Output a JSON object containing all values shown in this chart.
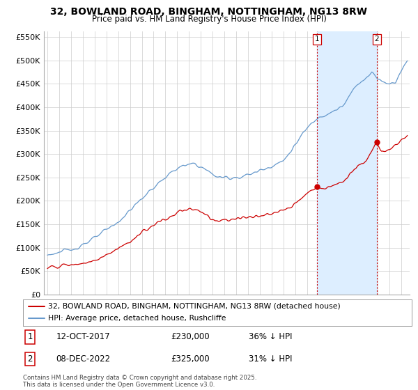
{
  "title": "32, BOWLAND ROAD, BINGHAM, NOTTINGHAM, NG13 8RW",
  "subtitle": "Price paid vs. HM Land Registry's House Price Index (HPI)",
  "legend_entry1": "32, BOWLAND ROAD, BINGHAM, NOTTINGHAM, NG13 8RW (detached house)",
  "legend_entry2": "HPI: Average price, detached house, Rushcliffe",
  "transaction1_label": "1",
  "transaction1_date": "12-OCT-2017",
  "transaction1_price": "£230,000",
  "transaction1_hpi": "36% ↓ HPI",
  "transaction2_label": "2",
  "transaction2_date": "08-DEC-2022",
  "transaction2_price": "£325,000",
  "transaction2_hpi": "31% ↓ HPI",
  "copyright": "Contains HM Land Registry data © Crown copyright and database right 2025.\nThis data is licensed under the Open Government Licence v3.0.",
  "red_color": "#cc0000",
  "blue_color": "#6699cc",
  "fill_color": "#ddeeff",
  "marker_color": "#cc0000",
  "dashed_color": "#cc0000",
  "grid_color": "#cccccc",
  "bg_color": "#ffffff",
  "ylim": [
    0,
    562500
  ],
  "yticks": [
    0,
    50000,
    100000,
    150000,
    200000,
    250000,
    300000,
    350000,
    400000,
    450000,
    500000,
    550000
  ],
  "transaction1_year": 2017.83,
  "transaction1_value": 230000,
  "transaction2_year": 2022.92,
  "transaction2_value": 325000,
  "xlim_start": 1994.7,
  "xlim_end": 2025.7
}
